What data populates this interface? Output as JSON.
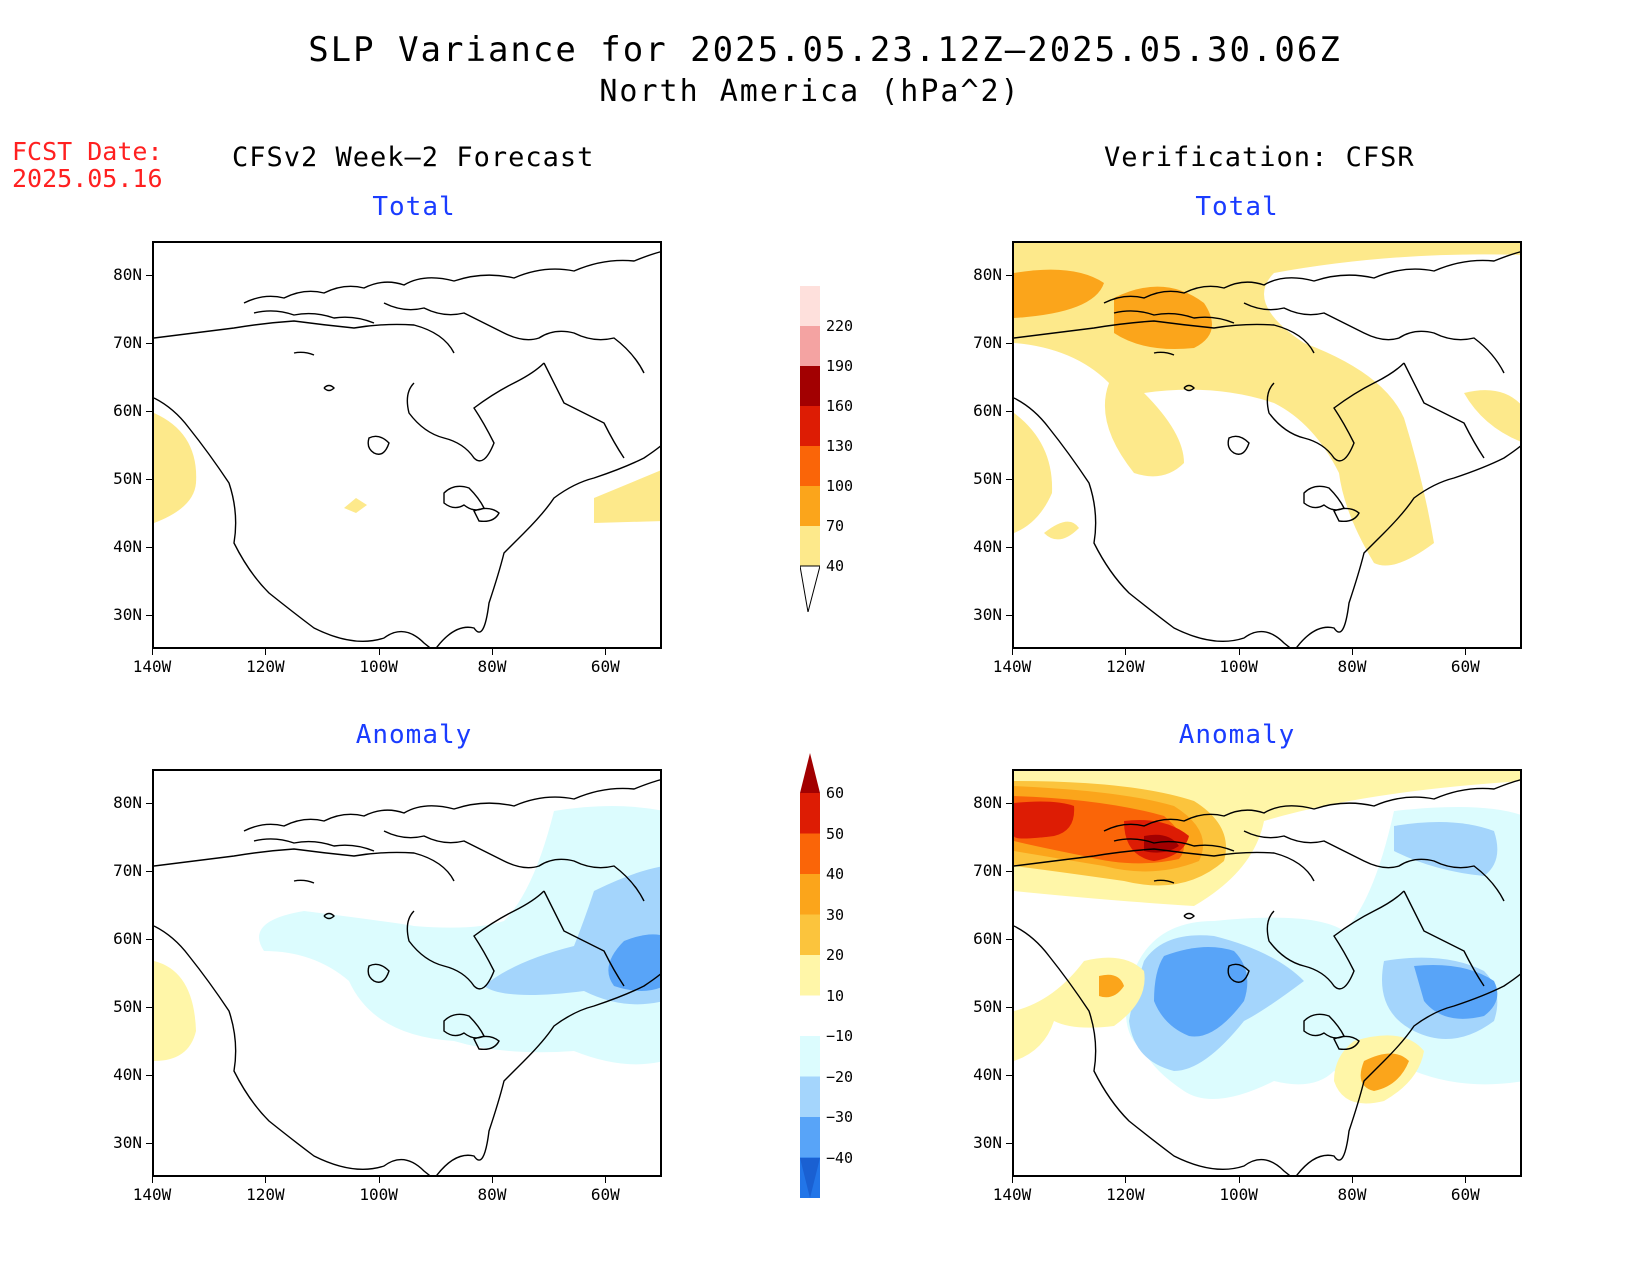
{
  "title": {
    "line1": "SLP Variance for 2025.05.23.12Z–2025.05.30.06Z",
    "line2": "North America (hPa^2)"
  },
  "fcst_date": {
    "label": "FCST Date:",
    "value": "2025.05.16"
  },
  "columns": {
    "left": "CFSv2 Week–2 Forecast",
    "right": "Verification: CFSR"
  },
  "panels": {
    "total": "Total",
    "anomaly": "Anomaly"
  },
  "axes": {
    "lat_ticks": [
      "80N",
      "70N",
      "60N",
      "50N",
      "40N",
      "30N"
    ],
    "lon_ticks": [
      "140W",
      "120W",
      "100W",
      "80W",
      "60W"
    ],
    "lon_range": [
      -140,
      -50
    ],
    "lat_range": [
      25,
      85
    ]
  },
  "colorbars": {
    "total": {
      "levels": [
        "40",
        "70",
        "100",
        "130",
        "160",
        "190",
        "220"
      ],
      "colors": [
        "#fde98b",
        "#fba51b",
        "#fa6508",
        "#dd1c04",
        "#a20001",
        "#f4a3a2",
        "#fee0dc"
      ]
    },
    "anomaly": {
      "levels": [
        "60",
        "50",
        "40",
        "30",
        "20",
        "10",
        "−10",
        "−20",
        "−30",
        "−40"
      ],
      "colors_top": [
        "#a20001",
        "#dd1c04",
        "#fa6508",
        "#fba51b",
        "#fbc43d",
        "#fff6a8",
        "#ffffff",
        "#dcfcfe",
        "#a4d5fc",
        "#58a4f8",
        "#2275e8",
        "#1a60d2"
      ]
    }
  }
}
